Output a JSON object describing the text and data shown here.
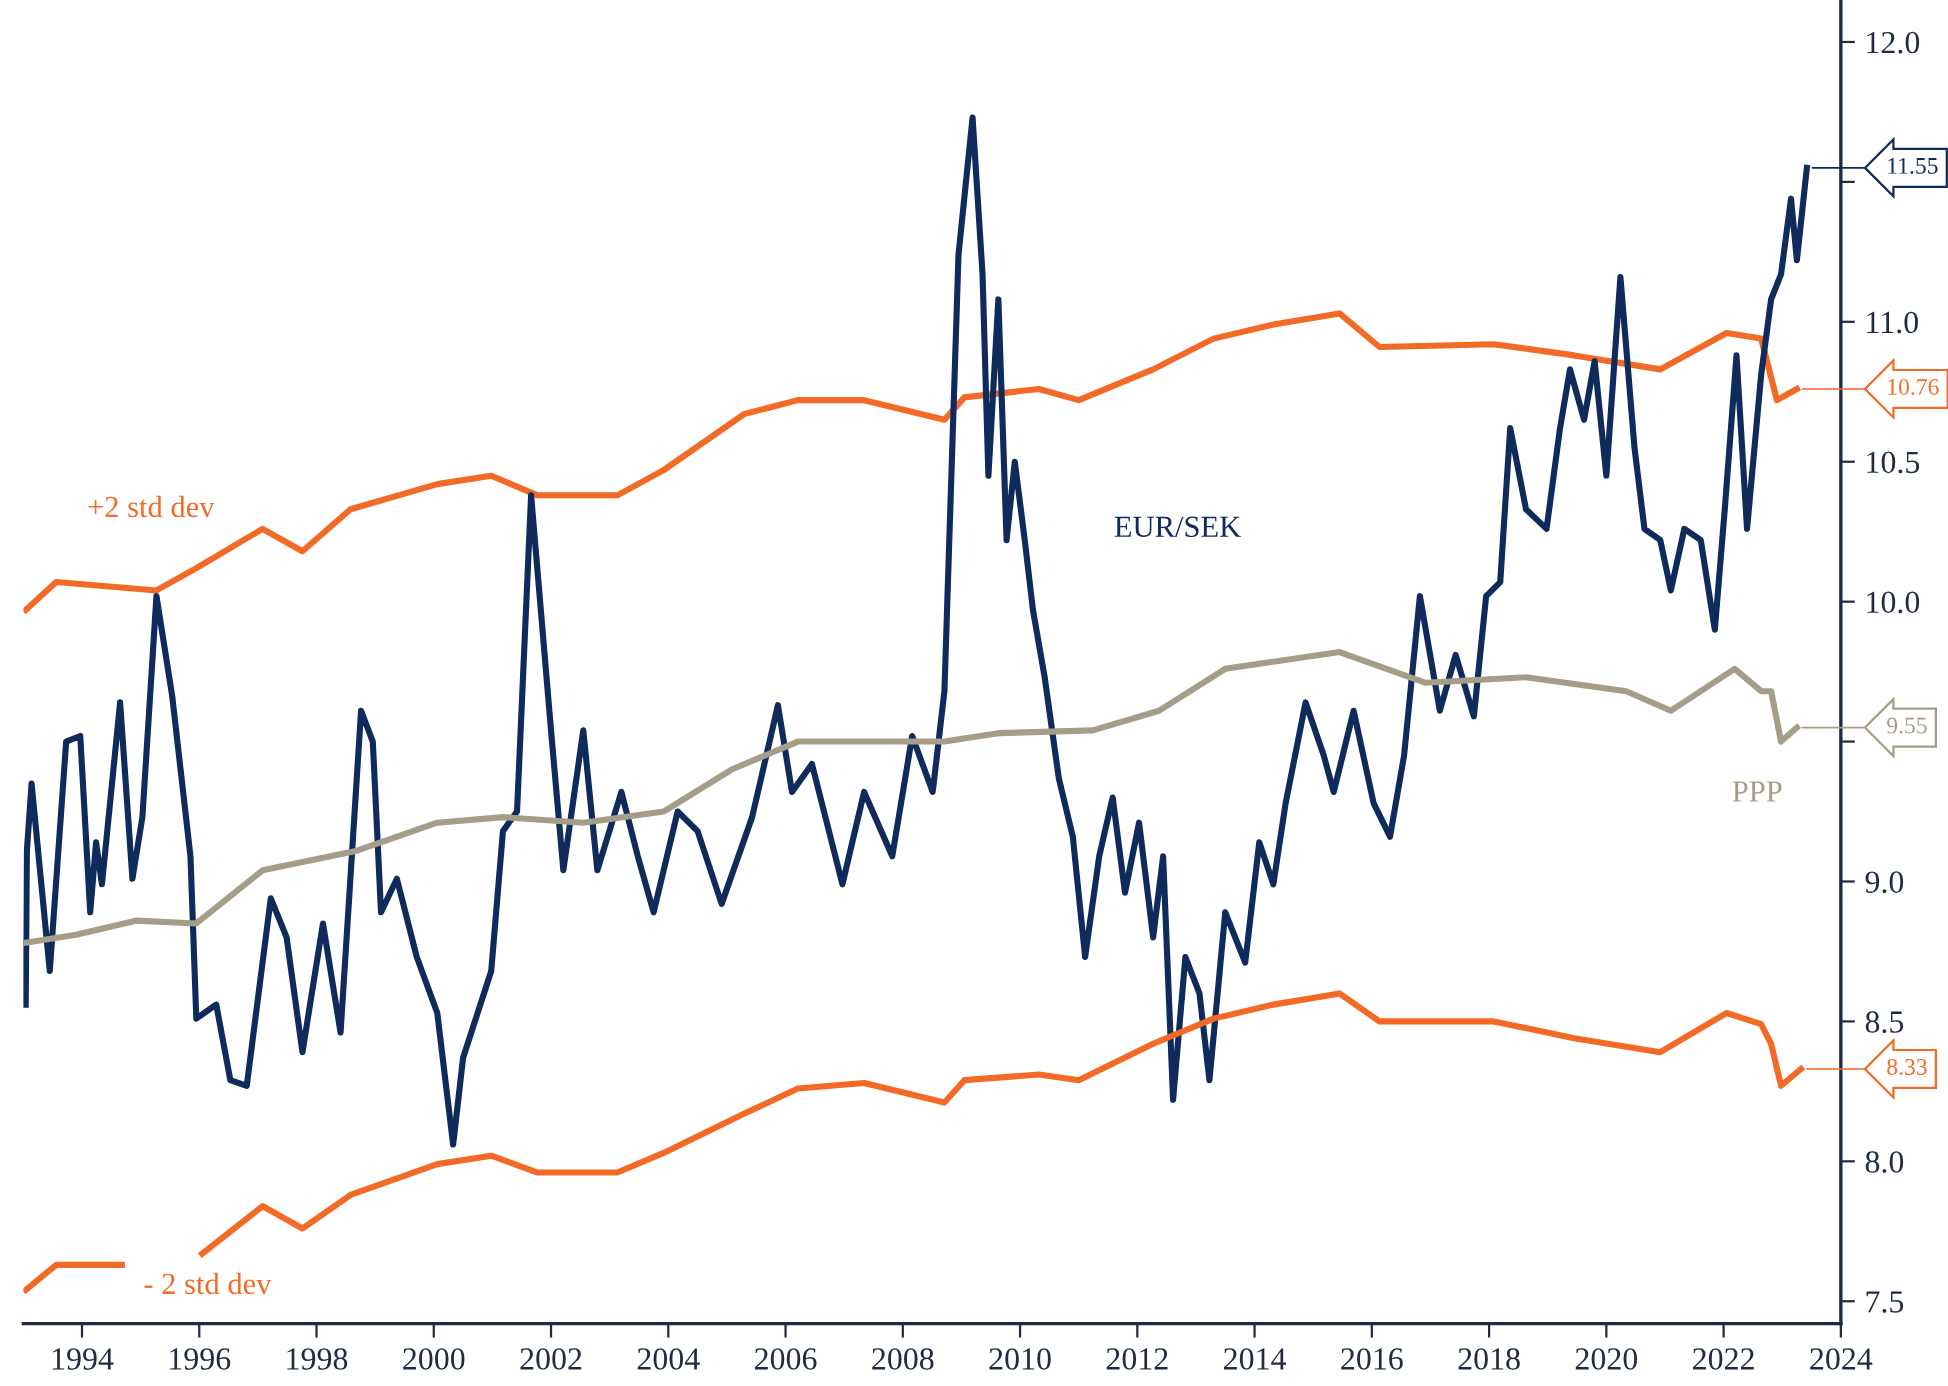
{
  "chart_data": {
    "type": "line",
    "xlim": [
      1993.0,
      2024.0
    ],
    "xticks": [
      1994,
      1996,
      1998,
      2000,
      2002,
      2004,
      2006,
      2008,
      2010,
      2012,
      2014,
      2016,
      2018,
      2020,
      2022,
      2024
    ],
    "ylim": [
      7.42,
      12.15
    ],
    "yticks": [
      {
        "value": 7.5,
        "label": "7.5"
      },
      {
        "value": 8.0,
        "label": "8.0"
      },
      {
        "value": 8.5,
        "label": "8.5"
      },
      {
        "value": 9.0,
        "label": "9.0"
      },
      {
        "value": 9.5,
        "label": null
      },
      {
        "value": 10.0,
        "label": "10.0"
      },
      {
        "value": 10.5,
        "label": "10.5"
      },
      {
        "value": 11.0,
        "label": "11.0"
      },
      {
        "value": 11.5,
        "label": null
      },
      {
        "value": 12.0,
        "label": "12.0"
      }
    ],
    "grid": false,
    "legend": false,
    "marker": "none",
    "line_style": "solid",
    "series": [
      {
        "name": "+2 std dev",
        "color": "#f26a25",
        "x": [
          1993.04,
          1993.56,
          1995.27,
          1995.95,
          1997.08,
          1997.76,
          1998.58,
          2000.06,
          2000.98,
          2001.77,
          2003.13,
          2003.92,
          2005.29,
          2006.21,
          2007.34,
          2008.71,
          2009.05,
          2010.32,
          2011.0,
          2012.27,
          2013.3,
          2014.32,
          2015.45,
          2016.13,
          2018.08,
          2019.45,
          2020.92,
          2022.05,
          2022.64,
          2022.74,
          2022.91,
          2023.25
        ],
        "values": [
          9.97,
          10.07,
          10.04,
          10.12,
          10.26,
          10.18,
          10.33,
          10.42,
          10.45,
          10.38,
          10.38,
          10.47,
          10.67,
          10.72,
          10.72,
          10.65,
          10.73,
          10.76,
          10.72,
          10.83,
          10.94,
          10.99,
          11.03,
          10.91,
          10.92,
          10.88,
          10.83,
          10.96,
          10.94,
          10.86,
          10.72,
          10.76
        ],
        "value_labels": [
          null,
          null,
          null,
          null,
          null,
          null,
          null,
          null,
          null,
          null,
          null,
          null,
          null,
          null,
          null,
          null,
          null,
          null,
          null,
          null,
          null,
          null,
          null,
          null,
          null,
          null,
          null,
          null,
          null,
          null,
          null,
          "10.76"
        ]
      },
      {
        "name": "EUR/SEK",
        "color": "#0f2b5b",
        "x": [
          1993.04,
          1993.06,
          1993.14,
          1993.45,
          1993.73,
          1993.97,
          1994.14,
          1994.24,
          1994.34,
          1994.65,
          1994.86,
          1995.03,
          1995.27,
          1995.54,
          1995.85,
          1995.95,
          1996.29,
          1996.53,
          1996.81,
          1997.22,
          1997.49,
          1997.76,
          1998.11,
          1998.41,
          1998.76,
          1998.96,
          1999.1,
          1999.37,
          1999.71,
          2000.06,
          2000.33,
          2000.5,
          2000.98,
          2001.18,
          2001.42,
          2001.66,
          2002.0,
          2002.21,
          2002.55,
          2002.79,
          2003.2,
          2003.48,
          2003.75,
          2004.16,
          2004.5,
          2004.91,
          2005.43,
          2005.87,
          2006.11,
          2006.45,
          2006.97,
          2007.34,
          2007.82,
          2008.16,
          2008.51,
          2008.71,
          2008.95,
          2009.19,
          2009.36,
          2009.46,
          2009.63,
          2009.77,
          2009.91,
          2010.08,
          2010.22,
          2010.42,
          2010.56,
          2010.66,
          2010.9,
          2011.11,
          2011.35,
          2011.58,
          2011.79,
          2012.03,
          2012.27,
          2012.44,
          2012.61,
          2012.82,
          2013.06,
          2013.23,
          2013.5,
          2013.84,
          2014.08,
          2014.32,
          2014.53,
          2014.87,
          2015.18,
          2015.35,
          2015.69,
          2016.03,
          2016.31,
          2016.55,
          2016.82,
          2017.16,
          2017.43,
          2017.74,
          2017.95,
          2018.19,
          2018.36,
          2018.63,
          2018.98,
          2019.21,
          2019.38,
          2019.62,
          2019.8,
          2020.0,
          2020.24,
          2020.48,
          2020.65,
          2020.92,
          2021.1,
          2021.33,
          2021.61,
          2021.85,
          2022.02,
          2022.22,
          2022.4,
          2022.64,
          2022.81,
          2022.98,
          2023.15,
          2023.25,
          2023.42
        ],
        "values": [
          8.56,
          9.11,
          9.35,
          8.68,
          9.5,
          9.52,
          8.89,
          9.14,
          8.99,
          9.64,
          9.01,
          9.23,
          10.02,
          9.66,
          9.09,
          8.51,
          8.56,
          8.29,
          8.27,
          8.94,
          8.8,
          8.39,
          8.85,
          8.46,
          9.61,
          9.5,
          8.89,
          9.01,
          8.73,
          8.53,
          8.06,
          8.37,
          8.68,
          9.18,
          9.25,
          10.38,
          9.54,
          9.04,
          9.54,
          9.04,
          9.32,
          9.09,
          8.89,
          9.25,
          9.18,
          8.92,
          9.23,
          9.63,
          9.32,
          9.42,
          8.99,
          9.32,
          9.09,
          9.52,
          9.32,
          9.68,
          11.24,
          11.73,
          11.17,
          10.45,
          11.08,
          10.22,
          10.5,
          10.22,
          9.97,
          9.73,
          9.52,
          9.37,
          9.16,
          8.73,
          9.09,
          9.3,
          8.96,
          9.21,
          8.8,
          9.09,
          8.22,
          8.73,
          8.6,
          8.29,
          8.89,
          8.71,
          9.14,
          8.99,
          9.28,
          9.64,
          9.45,
          9.32,
          9.61,
          9.28,
          9.16,
          9.45,
          10.02,
          9.61,
          9.81,
          9.59,
          10.02,
          10.07,
          10.62,
          10.33,
          10.26,
          10.62,
          10.83,
          10.65,
          10.86,
          10.45,
          11.16,
          10.55,
          10.26,
          10.22,
          10.04,
          10.26,
          10.22,
          9.9,
          10.33,
          10.88,
          10.26,
          10.81,
          11.08,
          11.17,
          11.44,
          11.22,
          11.55
        ],
        "value_labels": [
          null,
          null,
          null,
          null,
          null,
          null,
          null,
          null,
          null,
          null,
          null,
          null,
          null,
          null,
          null,
          null,
          null,
          null,
          null,
          null,
          null,
          null,
          null,
          null,
          null,
          null,
          null,
          null,
          null,
          null,
          null,
          null,
          null,
          null,
          null,
          null,
          null,
          null,
          null,
          null,
          null,
          null,
          null,
          null,
          null,
          null,
          null,
          null,
          null,
          null,
          null,
          null,
          null,
          null,
          null,
          null,
          null,
          null,
          null,
          null,
          null,
          null,
          null,
          null,
          null,
          null,
          null,
          null,
          null,
          null,
          null,
          null,
          null,
          null,
          null,
          null,
          null,
          null,
          null,
          null,
          null,
          null,
          null,
          null,
          null,
          null,
          null,
          null,
          null,
          null,
          null,
          null,
          null,
          null,
          null,
          null,
          null,
          null,
          null,
          null,
          null,
          null,
          null,
          null,
          null,
          null,
          null,
          null,
          null,
          null,
          null,
          null,
          null,
          null,
          null,
          null,
          null,
          null,
          null,
          null,
          null,
          null,
          "11.55"
        ]
      },
      {
        "name": "PPP",
        "color": "#a59d87",
        "x": [
          1993.01,
          1993.9,
          1994.92,
          1995.95,
          1997.08,
          1998.69,
          2000.06,
          2001.18,
          2002.55,
          2003.92,
          2005.08,
          2006.21,
          2007.34,
          2008.71,
          2009.63,
          2011.24,
          2012.37,
          2013.5,
          2015.45,
          2016.92,
          2018.63,
          2020.34,
          2021.1,
          2022.19,
          2022.64,
          2022.81,
          2022.98,
          2023.25
        ],
        "values": [
          8.78,
          8.81,
          8.86,
          8.85,
          9.04,
          9.11,
          9.21,
          9.23,
          9.21,
          9.25,
          9.4,
          9.5,
          9.5,
          9.5,
          9.53,
          9.54,
          9.61,
          9.76,
          9.82,
          9.71,
          9.73,
          9.68,
          9.61,
          9.76,
          9.68,
          9.68,
          9.5,
          9.55
        ],
        "value_labels": [
          null,
          null,
          null,
          null,
          null,
          null,
          null,
          null,
          null,
          null,
          null,
          null,
          null,
          null,
          null,
          null,
          null,
          null,
          null,
          null,
          null,
          null,
          null,
          null,
          null,
          null,
          null,
          "9.55"
        ]
      },
      {
        "name": "- 2 std dev",
        "color": "#f26a25",
        "x": [
          1993.04,
          1993.56,
          1994.68,
          1995.3,
          1996.05,
          1997.08,
          1997.76,
          1998.58,
          2000.06,
          2000.98,
          2001.77,
          2003.13,
          2003.92,
          2005.29,
          2006.21,
          2007.34,
          2008.71,
          2009.05,
          2010.32,
          2011.0,
          2012.27,
          2013.3,
          2014.32,
          2015.45,
          2016.13,
          2018.08,
          2019.45,
          2020.92,
          2022.05,
          2022.64,
          2022.81,
          2022.98,
          2023.32
        ],
        "values": [
          7.54,
          7.63,
          7.63,
          null,
          7.67,
          7.84,
          7.76,
          7.88,
          7.99,
          8.02,
          7.96,
          7.96,
          8.03,
          8.17,
          8.26,
          8.28,
          8.21,
          8.29,
          8.31,
          8.29,
          8.42,
          8.51,
          8.56,
          8.6,
          8.5,
          8.5,
          8.44,
          8.39,
          8.53,
          8.49,
          8.42,
          8.27,
          8.33
        ],
        "value_labels": [
          null,
          null,
          null,
          null,
          null,
          null,
          null,
          null,
          null,
          null,
          null,
          null,
          null,
          null,
          null,
          null,
          null,
          null,
          null,
          null,
          null,
          null,
          null,
          null,
          null,
          null,
          null,
          null,
          null,
          null,
          null,
          null,
          "8.33"
        ]
      }
    ]
  }
}
